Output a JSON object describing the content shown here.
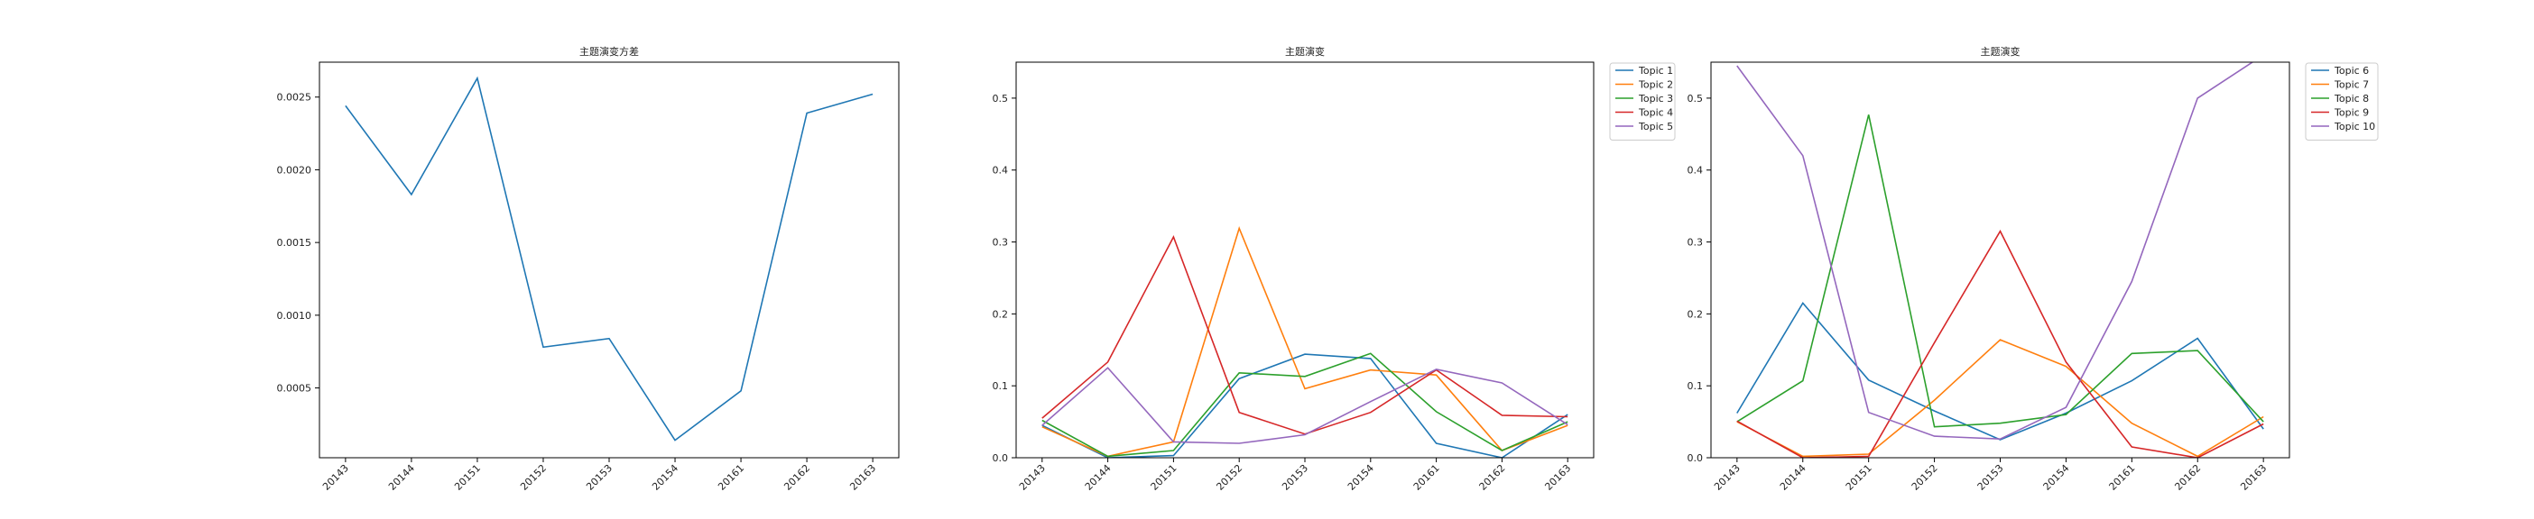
{
  "chart_data": [
    {
      "type": "line",
      "title": "主题演变方差",
      "xlabel": "",
      "ylabel": "",
      "categories": [
        "20143",
        "20144",
        "20151",
        "20152",
        "20153",
        "20154",
        "20161",
        "20162",
        "20163"
      ],
      "ylim": [
        2e-05,
        0.00274
      ],
      "yticks": [
        0.0005,
        0.001,
        0.0015,
        0.002,
        0.0025
      ],
      "ytick_labels": [
        "0.0005",
        "0.0010",
        "0.0015",
        "0.0020",
        "0.0025"
      ],
      "legend": "none",
      "series": [
        {
          "values": [
            0.00244,
            0.00183,
            0.00263,
            0.00078,
            0.00084,
            0.00014,
            0.00048,
            0.00239,
            0.00252
          ],
          "color": "#1f77b4"
        }
      ]
    },
    {
      "type": "line",
      "title": "主题演变",
      "xlabel": "",
      "ylabel": "",
      "categories": [
        "20143",
        "20144",
        "20151",
        "20152",
        "20153",
        "20154",
        "20161",
        "20162",
        "20163"
      ],
      "ylim": [
        0,
        0.55
      ],
      "yticks": [
        0.0,
        0.1,
        0.2,
        0.3,
        0.4,
        0.5
      ],
      "ytick_labels": [
        "0.0",
        "0.1",
        "0.2",
        "0.3",
        "0.4",
        "0.5"
      ],
      "legend": "outside-right",
      "series": [
        {
          "name": "Topic 1",
          "values": [
            0.045,
            0.0,
            0.003,
            0.11,
            0.144,
            0.138,
            0.02,
            0.0,
            0.06
          ],
          "color": "#1f77b4"
        },
        {
          "name": "Topic 2",
          "values": [
            0.043,
            0.002,
            0.022,
            0.319,
            0.096,
            0.122,
            0.115,
            0.01,
            0.045
          ],
          "color": "#ff7f0e"
        },
        {
          "name": "Topic 3",
          "values": [
            0.052,
            0.002,
            0.01,
            0.118,
            0.113,
            0.145,
            0.064,
            0.01,
            0.05
          ],
          "color": "#2ca02c"
        },
        {
          "name": "Topic 4",
          "values": [
            0.055,
            0.133,
            0.307,
            0.063,
            0.033,
            0.063,
            0.122,
            0.059,
            0.057
          ],
          "color": "#d62728"
        },
        {
          "name": "Topic 5",
          "values": [
            0.045,
            0.125,
            0.022,
            0.02,
            0.032,
            0.078,
            0.123,
            0.104,
            0.046
          ],
          "color": "#9467bd"
        }
      ]
    },
    {
      "type": "line",
      "title": "主题演变",
      "xlabel": "",
      "ylabel": "",
      "categories": [
        "20143",
        "20144",
        "20151",
        "20152",
        "20153",
        "20154",
        "20161",
        "20162",
        "20163"
      ],
      "ylim": [
        0,
        0.55
      ],
      "yticks": [
        0.0,
        0.1,
        0.2,
        0.3,
        0.4,
        0.5
      ],
      "ytick_labels": [
        "0.0",
        "0.1",
        "0.2",
        "0.3",
        "0.4",
        "0.5"
      ],
      "legend": "outside-right",
      "series": [
        {
          "name": "Topic 6",
          "values": [
            0.062,
            0.215,
            0.108,
            0.065,
            0.025,
            0.062,
            0.107,
            0.166,
            0.04
          ],
          "color": "#1f77b4"
        },
        {
          "name": "Topic 7",
          "values": [
            0.05,
            0.002,
            0.005,
            0.08,
            0.164,
            0.127,
            0.048,
            0.002,
            0.057
          ],
          "color": "#ff7f0e"
        },
        {
          "name": "Topic 8",
          "values": [
            0.05,
            0.107,
            0.477,
            0.043,
            0.048,
            0.06,
            0.145,
            0.149,
            0.05
          ],
          "color": "#2ca02c"
        },
        {
          "name": "Topic 9",
          "values": [
            0.051,
            0.0,
            0.002,
            0.16,
            0.315,
            0.133,
            0.015,
            0.0,
            0.047
          ],
          "color": "#d62728"
        },
        {
          "name": "Topic 10",
          "values": [
            0.545,
            0.42,
            0.063,
            0.03,
            0.026,
            0.07,
            0.245,
            0.5,
            0.56
          ],
          "color": "#9467bd"
        }
      ]
    }
  ]
}
